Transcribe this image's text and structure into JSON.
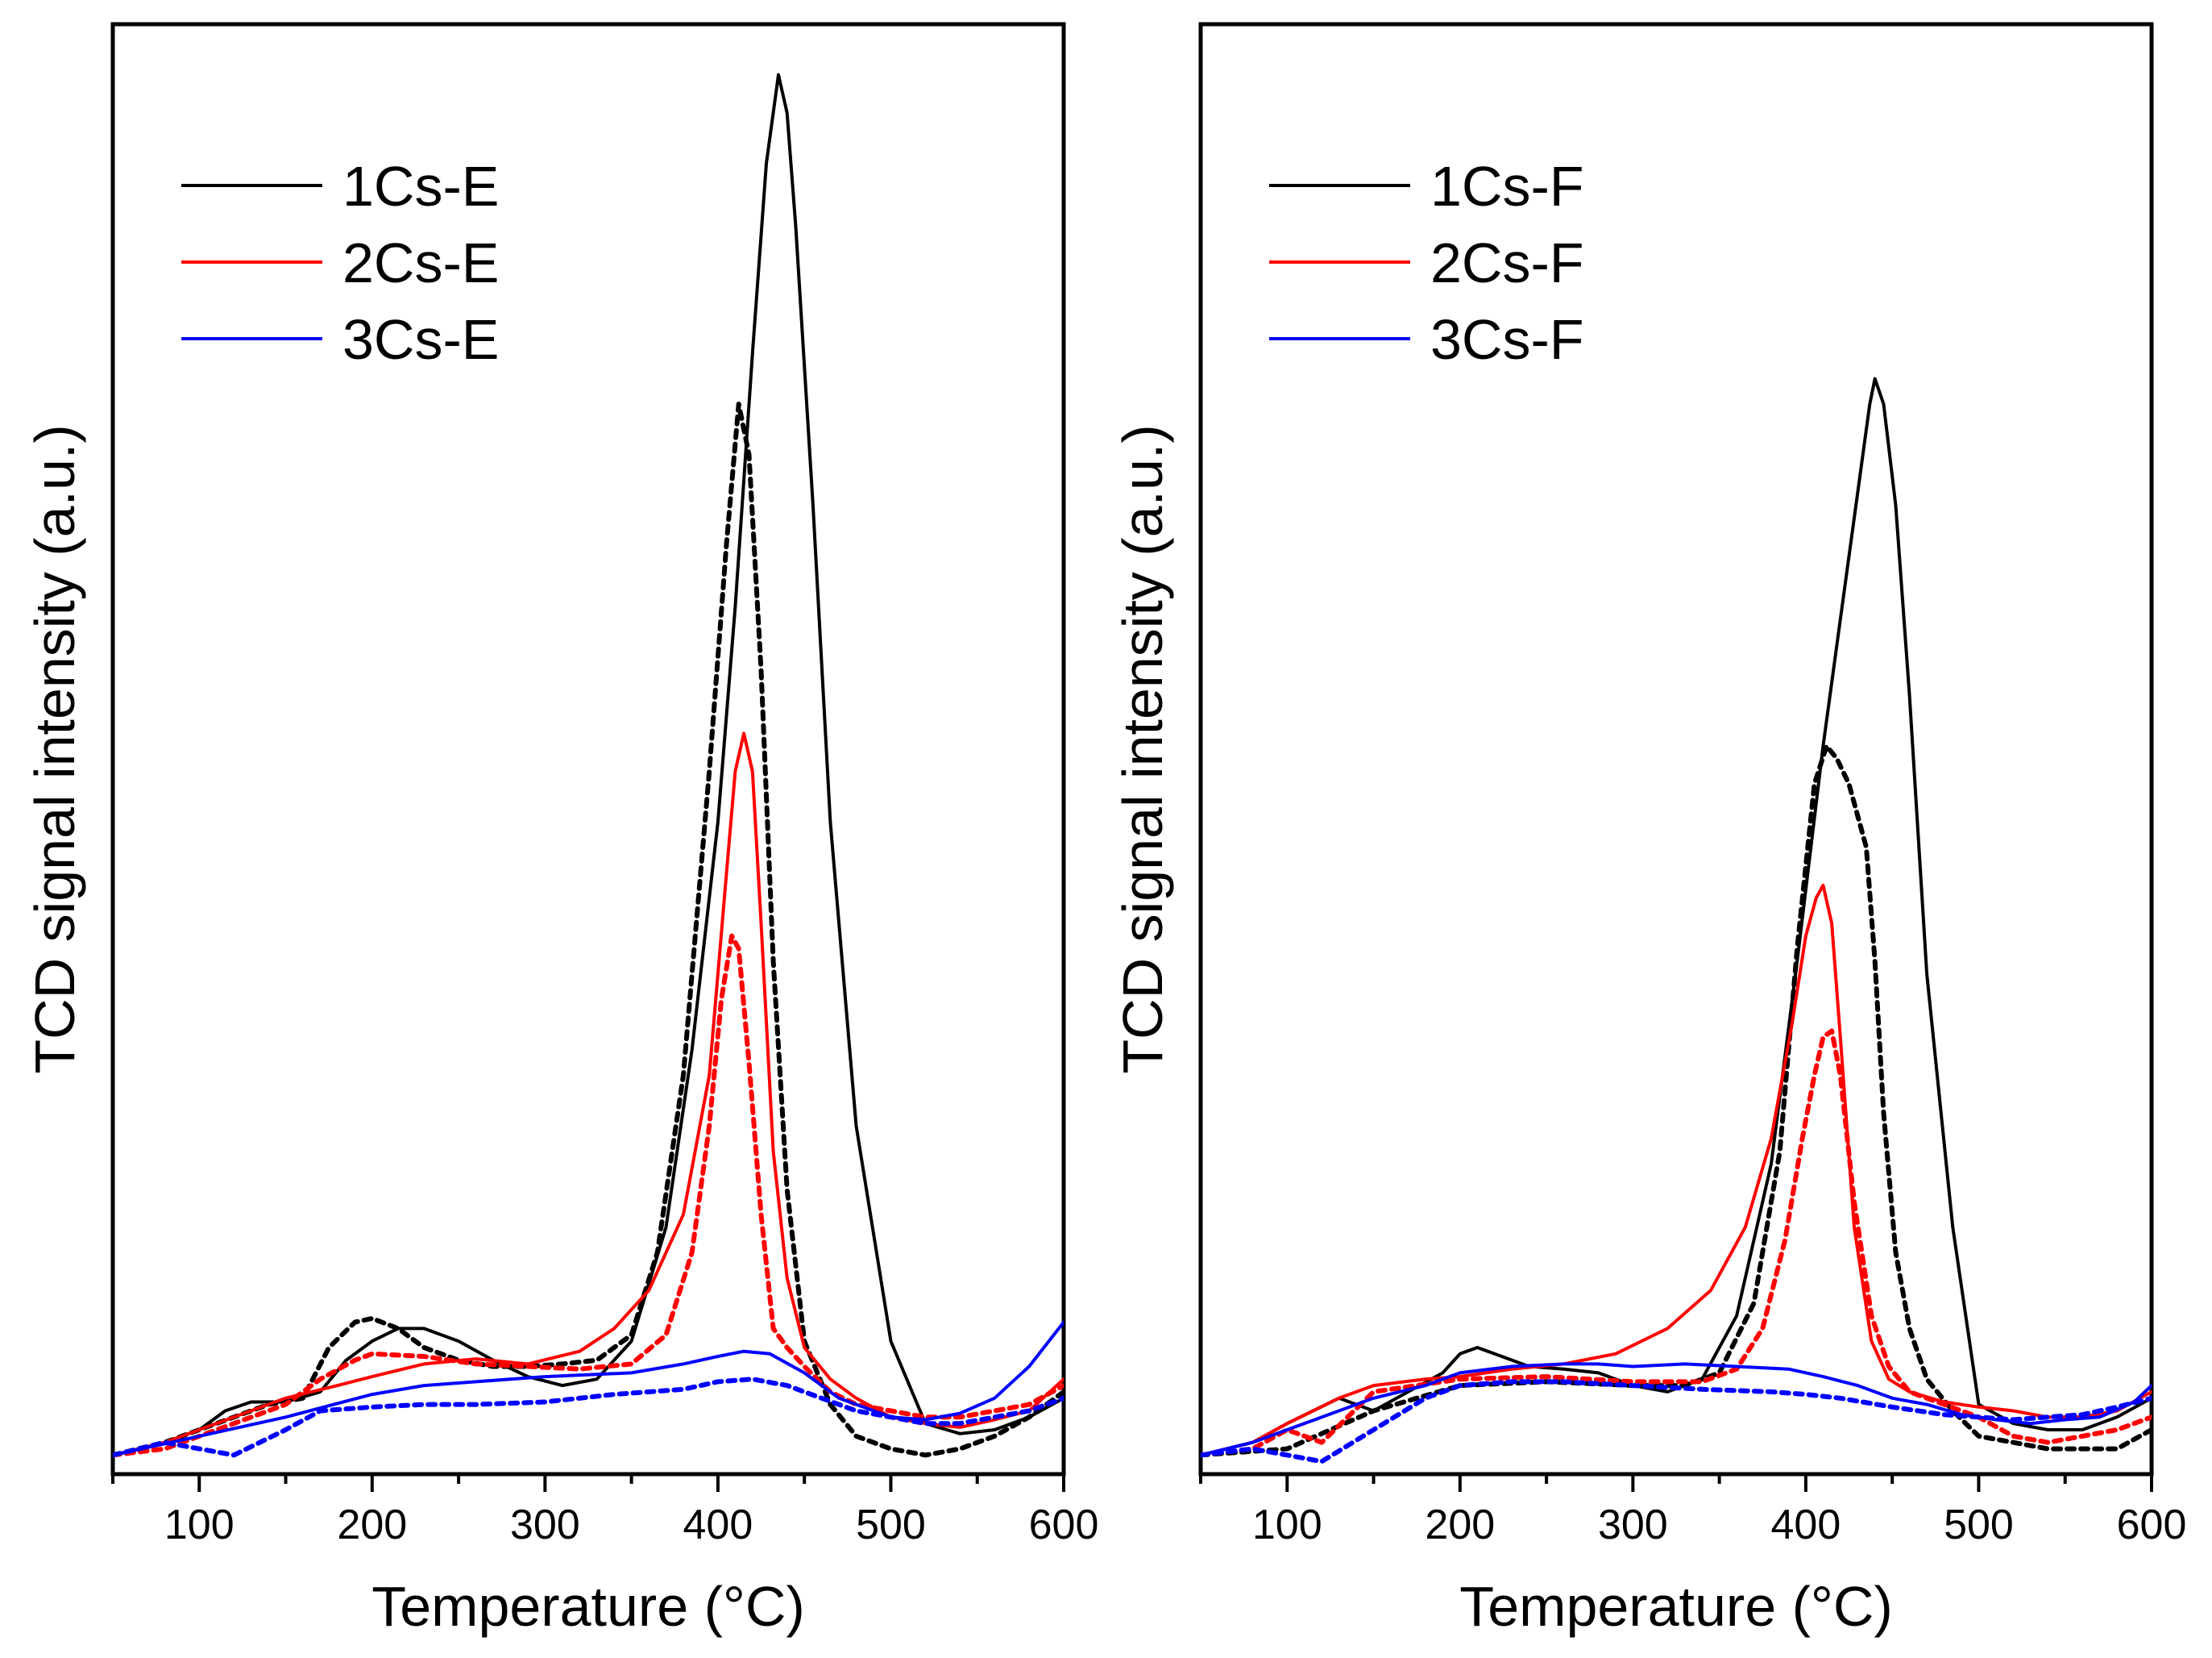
{
  "chart_data": [
    {
      "type": "line",
      "panel": "left",
      "xlabel": "Temperature (°C)",
      "ylabel": "TCD signal intensity (a.u.)",
      "xlim": [
        50,
        600
      ],
      "ylim": [
        -0.15,
        11.3
      ],
      "xticks": [
        100,
        200,
        300,
        400,
        500,
        600
      ],
      "xtick_labels": [
        "100",
        "200",
        "300",
        "400",
        "500",
        "600"
      ],
      "legend": [
        "1Cs-E",
        "2Cs-E",
        "3Cs-E"
      ],
      "legend_position": "top-left",
      "series": [
        {
          "name": "1Cs-E",
          "style": "solid",
          "color": "#000000",
          "x": [
            50,
            80,
            100,
            115,
            130,
            150,
            170,
            185,
            200,
            215,
            230,
            250,
            270,
            290,
            310,
            330,
            350,
            370,
            385,
            400,
            410,
            420,
            428,
            435,
            440,
            445,
            455,
            465,
            480,
            500,
            520,
            540,
            560,
            580,
            600
          ],
          "y": [
            0.0,
            0.1,
            0.2,
            0.35,
            0.42,
            0.42,
            0.5,
            0.75,
            0.9,
            1.0,
            1.0,
            0.9,
            0.75,
            0.62,
            0.55,
            0.6,
            0.9,
            1.8,
            3.2,
            5.0,
            6.7,
            8.7,
            10.2,
            10.9,
            10.6,
            9.7,
            7.5,
            5.0,
            2.6,
            0.9,
            0.25,
            0.17,
            0.2,
            0.3,
            0.45
          ]
        },
        {
          "name": "1Cs-E dotted",
          "style": "dotted",
          "color": "#000000",
          "x": [
            50,
            80,
            100,
            120,
            140,
            160,
            175,
            190,
            200,
            215,
            230,
            250,
            270,
            290,
            310,
            330,
            350,
            365,
            380,
            395,
            405,
            412,
            418,
            425,
            432,
            440,
            450,
            465,
            480,
            500,
            520,
            540,
            560,
            580,
            600
          ],
          "y": [
            0.0,
            0.1,
            0.2,
            0.3,
            0.4,
            0.45,
            0.85,
            1.05,
            1.08,
            1.0,
            0.85,
            0.75,
            0.7,
            0.7,
            0.72,
            0.75,
            0.95,
            1.6,
            3.0,
            5.4,
            7.2,
            8.3,
            7.9,
            6.2,
            3.9,
            2.1,
            0.9,
            0.4,
            0.15,
            0.05,
            0.0,
            0.05,
            0.15,
            0.3,
            0.5
          ]
        },
        {
          "name": "2Cs-E",
          "style": "solid",
          "color": "#ff0000",
          "x": [
            50,
            80,
            100,
            120,
            150,
            180,
            200,
            230,
            260,
            290,
            320,
            340,
            360,
            380,
            395,
            405,
            410,
            415,
            420,
            425,
            432,
            440,
            450,
            465,
            480,
            500,
            520,
            540,
            560,
            580,
            600
          ],
          "y": [
            0.0,
            0.1,
            0.2,
            0.3,
            0.45,
            0.55,
            0.62,
            0.72,
            0.76,
            0.72,
            0.82,
            1.0,
            1.3,
            1.9,
            3.0,
            4.6,
            5.4,
            5.7,
            5.4,
            4.2,
            2.4,
            1.4,
            0.85,
            0.6,
            0.45,
            0.3,
            0.25,
            0.22,
            0.28,
            0.35,
            0.6
          ]
        },
        {
          "name": "2Cs-E dotted",
          "style": "dotted",
          "color": "#ff0000",
          "x": [
            50,
            80,
            100,
            120,
            150,
            170,
            190,
            200,
            230,
            260,
            290,
            320,
            350,
            370,
            385,
            395,
            402,
            408,
            412,
            418,
            425,
            432,
            440,
            450,
            465,
            480,
            500,
            520,
            540,
            560,
            580,
            600
          ],
          "y": [
            0.0,
            0.05,
            0.15,
            0.25,
            0.4,
            0.6,
            0.75,
            0.8,
            0.78,
            0.72,
            0.7,
            0.68,
            0.72,
            0.95,
            1.6,
            2.6,
            3.6,
            4.1,
            4.0,
            3.1,
            1.9,
            1.0,
            0.85,
            0.7,
            0.5,
            0.4,
            0.35,
            0.3,
            0.3,
            0.35,
            0.4,
            0.55
          ]
        },
        {
          "name": "3Cs-E",
          "style": "solid",
          "color": "#0000ff",
          "x": [
            50,
            100,
            150,
            200,
            230,
            260,
            300,
            350,
            380,
            400,
            415,
            430,
            450,
            470,
            500,
            520,
            540,
            560,
            580,
            600
          ],
          "y": [
            0.0,
            0.15,
            0.3,
            0.48,
            0.55,
            0.58,
            0.62,
            0.65,
            0.72,
            0.78,
            0.82,
            0.8,
            0.65,
            0.45,
            0.3,
            0.28,
            0.33,
            0.45,
            0.7,
            1.05
          ]
        },
        {
          "name": "3Cs-E dotted",
          "style": "dotted",
          "color": "#0000ff",
          "x": [
            50,
            80,
            100,
            120,
            150,
            170,
            200,
            230,
            260,
            300,
            340,
            380,
            400,
            420,
            440,
            460,
            480,
            500,
            520,
            540,
            560,
            580,
            600
          ],
          "y": [
            0.0,
            0.1,
            0.05,
            0.0,
            0.2,
            0.35,
            0.38,
            0.4,
            0.4,
            0.42,
            0.48,
            0.52,
            0.58,
            0.6,
            0.55,
            0.45,
            0.35,
            0.3,
            0.25,
            0.25,
            0.3,
            0.35,
            0.45
          ]
        }
      ]
    },
    {
      "type": "line",
      "panel": "right",
      "xlabel": "Temperature (°C)",
      "ylabel": "TCD signal intensity (a.u.)",
      "xlim": [
        50,
        600
      ],
      "ylim": [
        -0.15,
        11.3
      ],
      "xticks": [
        100,
        200,
        300,
        400,
        500,
        600
      ],
      "xtick_labels": [
        "100",
        "200",
        "300",
        "400",
        "500",
        "600"
      ],
      "legend": [
        "1Cs-F",
        "2Cs-F",
        "3Cs-F"
      ],
      "legend_position": "top-left",
      "series": [
        {
          "name": "1Cs-F",
          "style": "solid",
          "color": "#000000",
          "x": [
            50,
            80,
            100,
            130,
            150,
            170,
            190,
            200,
            210,
            220,
            240,
            260,
            280,
            300,
            320,
            340,
            360,
            380,
            395,
            410,
            420,
            430,
            437,
            440,
            445,
            452,
            460,
            470,
            485,
            500,
            520,
            540,
            560,
            580,
            600
          ],
          "y": [
            0.0,
            0.1,
            0.25,
            0.45,
            0.35,
            0.5,
            0.65,
            0.8,
            0.85,
            0.8,
            0.7,
            0.68,
            0.65,
            0.55,
            0.5,
            0.6,
            1.1,
            2.3,
            3.9,
            5.6,
            6.6,
            7.6,
            8.3,
            8.5,
            8.3,
            7.5,
            6.0,
            3.8,
            1.8,
            0.4,
            0.25,
            0.2,
            0.2,
            0.3,
            0.45
          ]
        },
        {
          "name": "1Cs-F dotted",
          "style": "dotted",
          "color": "#000000",
          "x": [
            50,
            100,
            150,
            200,
            250,
            300,
            330,
            350,
            370,
            385,
            395,
            405,
            412,
            418,
            425,
            435,
            440,
            445,
            452,
            460,
            470,
            485,
            500,
            520,
            540,
            560,
            580,
            600
          ],
          "y": [
            0.0,
            0.05,
            0.35,
            0.55,
            0.58,
            0.55,
            0.55,
            0.65,
            1.2,
            2.4,
            4.0,
            5.3,
            5.6,
            5.5,
            5.3,
            4.8,
            3.9,
            2.7,
            1.6,
            1.0,
            0.6,
            0.35,
            0.15,
            0.1,
            0.05,
            0.05,
            0.05,
            0.2
          ]
        },
        {
          "name": "2Cs-F",
          "style": "solid",
          "color": "#ff0000",
          "x": [
            50,
            80,
            100,
            130,
            150,
            180,
            200,
            230,
            260,
            290,
            320,
            345,
            365,
            380,
            392,
            400,
            406,
            410,
            415,
            420,
            428,
            438,
            448,
            460,
            480,
            500,
            520,
            540,
            560,
            580,
            600
          ],
          "y": [
            0.0,
            0.1,
            0.25,
            0.45,
            0.55,
            0.6,
            0.62,
            0.68,
            0.72,
            0.8,
            1.0,
            1.3,
            1.8,
            2.5,
            3.4,
            4.1,
            4.4,
            4.5,
            4.2,
            3.3,
            1.8,
            0.9,
            0.6,
            0.5,
            0.42,
            0.38,
            0.35,
            0.3,
            0.3,
            0.35,
            0.5
          ]
        },
        {
          "name": "2Cs-F dotted",
          "style": "dotted",
          "color": "#ff0000",
          "x": [
            50,
            80,
            100,
            120,
            150,
            200,
            250,
            300,
            340,
            360,
            375,
            388,
            398,
            405,
            410,
            415,
            420,
            428,
            438,
            448,
            460,
            480,
            500,
            520,
            540,
            560,
            580,
            600
          ],
          "y": [
            0.0,
            0.05,
            0.2,
            0.1,
            0.5,
            0.6,
            0.62,
            0.58,
            0.58,
            0.68,
            1.0,
            1.7,
            2.5,
            3.0,
            3.3,
            3.35,
            3.0,
            2.0,
            1.1,
            0.7,
            0.5,
            0.4,
            0.3,
            0.15,
            0.1,
            0.15,
            0.2,
            0.3
          ]
        },
        {
          "name": "3Cs-F",
          "style": "solid",
          "color": "#0000ff",
          "x": [
            50,
            80,
            100,
            130,
            150,
            180,
            200,
            230,
            260,
            280,
            300,
            330,
            360,
            390,
            410,
            430,
            450,
            470,
            490,
            510,
            530,
            550,
            570,
            590,
            600
          ],
          "y": [
            0.0,
            0.1,
            0.2,
            0.35,
            0.45,
            0.55,
            0.65,
            0.7,
            0.72,
            0.72,
            0.7,
            0.72,
            0.7,
            0.68,
            0.62,
            0.55,
            0.45,
            0.4,
            0.32,
            0.28,
            0.25,
            0.28,
            0.3,
            0.42,
            0.55
          ]
        },
        {
          "name": "3Cs-F dotted",
          "style": "dotted",
          "color": "#0000ff",
          "x": [
            50,
            80,
            100,
            120,
            150,
            180,
            200,
            230,
            260,
            300,
            340,
            380,
            400,
            420,
            450,
            480,
            500,
            520,
            540,
            560,
            580,
            600
          ],
          "y": [
            0.0,
            0.05,
            0.0,
            -0.05,
            0.2,
            0.45,
            0.55,
            0.58,
            0.58,
            0.55,
            0.52,
            0.5,
            0.48,
            0.45,
            0.38,
            0.32,
            0.3,
            0.28,
            0.3,
            0.32,
            0.38,
            0.45
          ]
        }
      ]
    }
  ]
}
